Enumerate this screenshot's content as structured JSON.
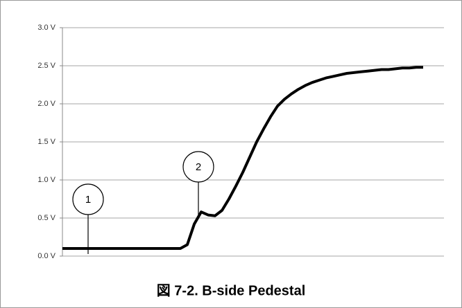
{
  "chart_data": {
    "type": "line",
    "title": "図 7-2. B-side Pedestal",
    "ylim": [
      0,
      3
    ],
    "yticks": [
      {
        "value": 0,
        "label": "0.0 V"
      },
      {
        "value": 0.5,
        "label": "0.5 V"
      },
      {
        "value": 1,
        "label": "1.0 V"
      },
      {
        "value": 1.5,
        "label": "1.5 V"
      },
      {
        "value": 2,
        "label": "2.0 V"
      },
      {
        "value": 2.5,
        "label": "2.5 V"
      },
      {
        "value": 3,
        "label": "3.0 V"
      }
    ],
    "grid": true,
    "series": [
      {
        "color": "#000000",
        "values": [
          0.1,
          0.1,
          0.1,
          0.1,
          0.1,
          0.1,
          0.1,
          0.1,
          0.1,
          0.1,
          0.1,
          0.1,
          0.1,
          0.1,
          0.1,
          0.1,
          0.1,
          0.1,
          0.15,
          0.42,
          0.58,
          0.54,
          0.53,
          0.6,
          0.75,
          0.92,
          1.1,
          1.3,
          1.5,
          1.67,
          1.83,
          1.97,
          2.06,
          2.13,
          2.19,
          2.24,
          2.28,
          2.31,
          2.34,
          2.36,
          2.38,
          2.4,
          2.41,
          2.42,
          2.43,
          2.44,
          2.45,
          2.45,
          2.46,
          2.47,
          2.47,
          2.48,
          2.48
        ]
      }
    ],
    "annotations": [
      {
        "label": "1"
      },
      {
        "label": "2"
      }
    ]
  }
}
